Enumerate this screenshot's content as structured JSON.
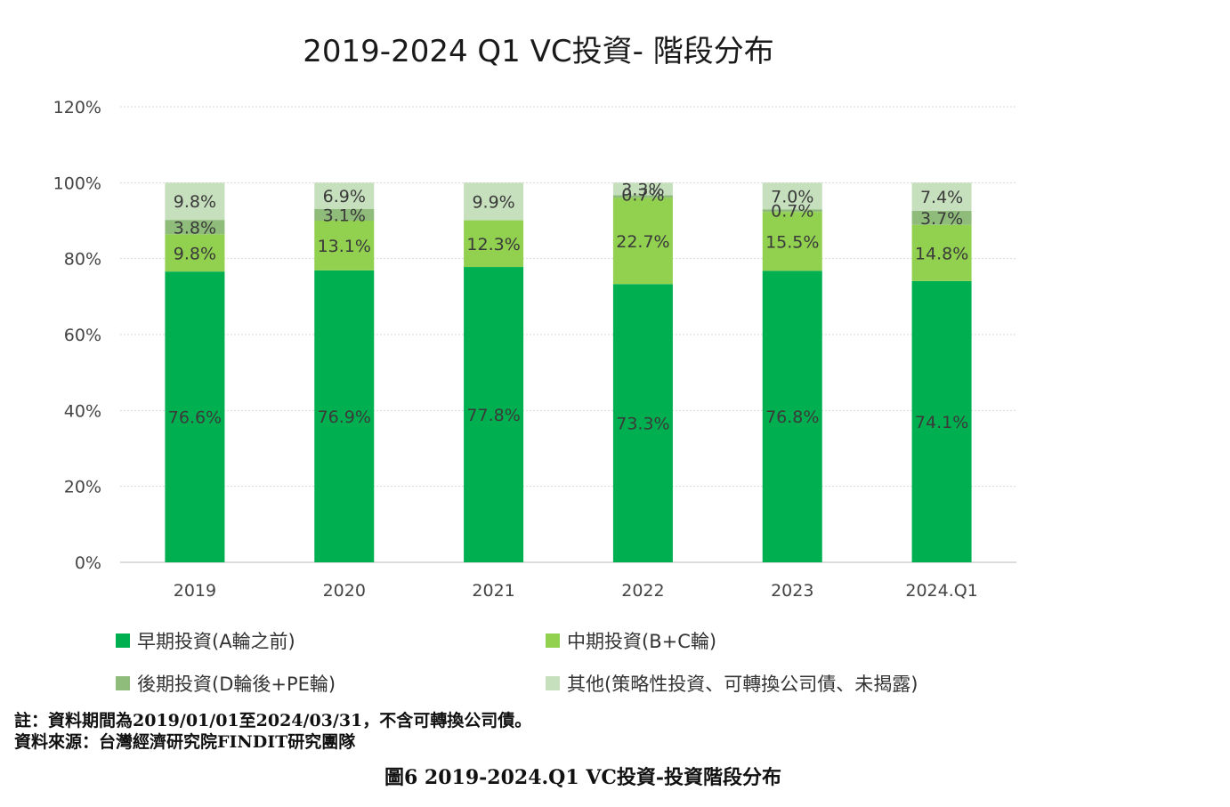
{
  "chart_data": {
    "type": "bar",
    "stacked": true,
    "title": "2019-2024 Q1 VC投資- 階段分布",
    "categories": [
      "2019",
      "2020",
      "2021",
      "2022",
      "2023",
      "2024.Q1"
    ],
    "ylim": [
      0,
      120
    ],
    "yticks": [
      "0%",
      "20%",
      "40%",
      "60%",
      "80%",
      "100%",
      "120%"
    ],
    "grid": true,
    "legend_position": "bottom",
    "series": [
      {
        "name": "早期投資(A輪之前)",
        "color": "#00b050",
        "values": [
          76.6,
          76.9,
          77.8,
          73.3,
          76.8,
          74.1
        ],
        "labels": [
          "76.6%",
          "76.9%",
          "77.8%",
          "73.3%",
          "76.8%",
          "74.1%"
        ]
      },
      {
        "name": "中期投資(B+C輪)",
        "color": "#92d050",
        "values": [
          9.8,
          13.1,
          12.3,
          22.7,
          15.5,
          14.8
        ],
        "labels": [
          "9.8%",
          "13.1%",
          "12.3%",
          "22.7%",
          "15.5%",
          "14.8%"
        ]
      },
      {
        "name": "後期投資(D輪後+PE輪)",
        "color": "#8fbc7a",
        "values": [
          3.8,
          3.1,
          0,
          0.7,
          0.7,
          3.7
        ],
        "labels": [
          "3.8%",
          "3.1%",
          "",
          "0.7%",
          "0.7%",
          "3.7%"
        ]
      },
      {
        "name": "其他(策略性投資、可轉換公司債、未揭露)",
        "color": "#c6dfbd",
        "values": [
          9.8,
          6.9,
          9.9,
          3.3,
          7.0,
          7.4
        ],
        "labels": [
          "9.8%",
          "6.9%",
          "9.9%",
          "3.3%",
          "7.0%",
          "7.4%"
        ]
      }
    ]
  },
  "notes": {
    "note": "註：資料期間為2019/01/01至2024/03/31，不含可轉換公司債。",
    "source": "資料來源：台灣經濟研究院FINDIT研究團隊"
  },
  "caption": "圖6  2019-2024.Q1 VC投資-投資階段分布"
}
